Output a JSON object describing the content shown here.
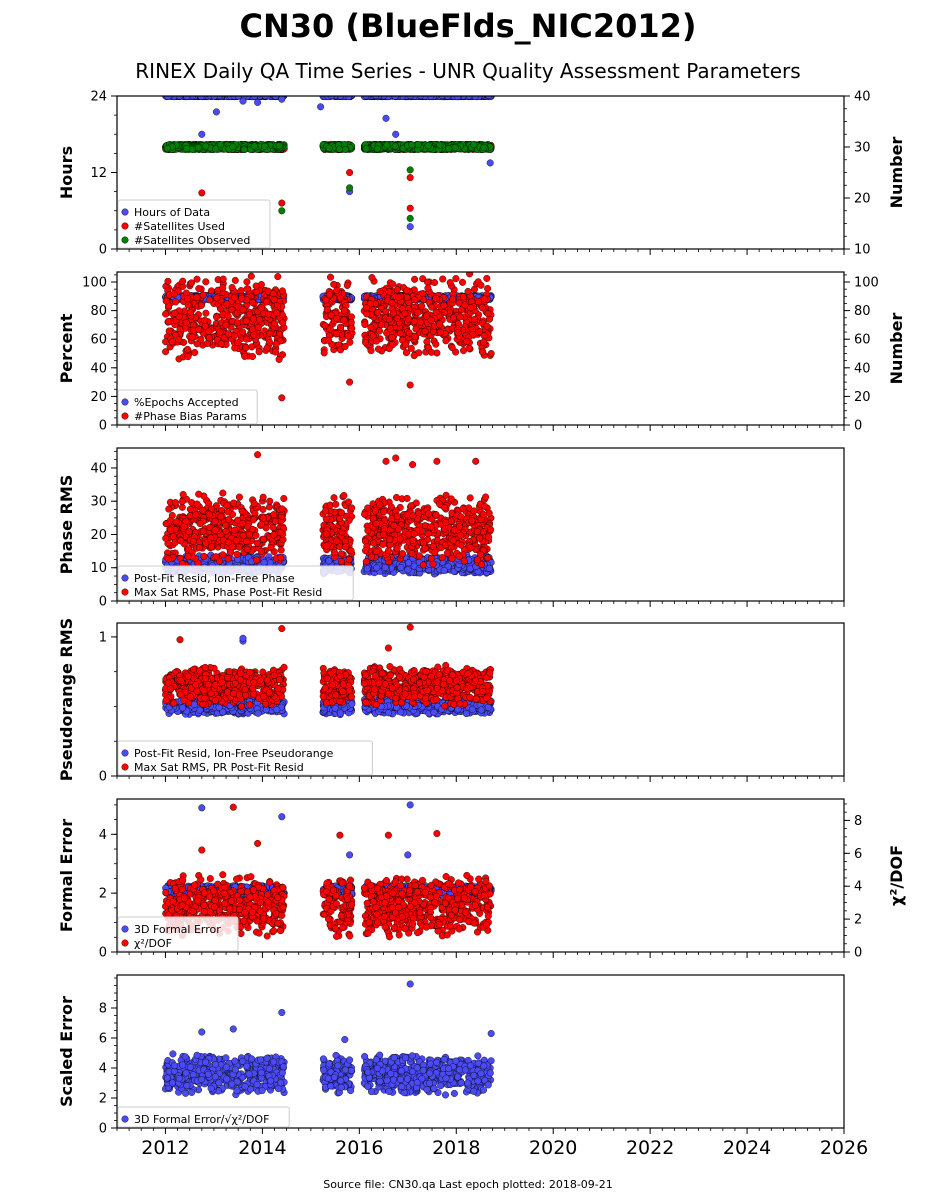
{
  "figure": {
    "title": "CN30 (BlueFlds_NIC2012)",
    "subtitle": "RINEX Daily QA Time Series - UNR Quality Assessment Parameters",
    "footer": "Source file: CN30.qa Last epoch plotted: 2018-09-21"
  },
  "colors": {
    "blue": "#4b4bf5",
    "red": "#ff0000",
    "green": "#008000"
  },
  "chart_data": [
    {
      "type": "scatter",
      "ylabel": "Hours",
      "y2label": "Number",
      "xlim": [
        2011.0,
        2026.0
      ],
      "ylim": [
        0,
        24
      ],
      "y2lim": [
        10,
        40
      ],
      "yticks": [
        0,
        12,
        24
      ],
      "y2ticks": [
        10,
        20,
        30,
        40
      ],
      "xticks": [
        2012,
        2014,
        2016,
        2018,
        2020,
        2022,
        2024,
        2026
      ],
      "data_segments": [
        [
          2012.0,
          2014.45
        ],
        [
          2015.25,
          2015.85
        ],
        [
          2016.1,
          2018.72
        ]
      ],
      "legend": [
        {
          "label": "Hours of Data",
          "color": "blue"
        },
        {
          "label": "#Satellites Used",
          "color": "red"
        },
        {
          "label": "#Satellites Observed",
          "color": "green"
        }
      ],
      "series": [
        {
          "name": "Hours of Data",
          "color": "blue",
          "axis": "left",
          "typical": 24,
          "spread": 0.1,
          "outliers": [
            [
              2012.75,
              18
            ],
            [
              2013.05,
              21.5
            ],
            [
              2013.6,
              23.2
            ],
            [
              2013.9,
              23.0
            ],
            [
              2014.4,
              23.5
            ],
            [
              2015.2,
              22.3
            ],
            [
              2015.8,
              9.0
            ],
            [
              2016.55,
              20.5
            ],
            [
              2016.75,
              18
            ],
            [
              2017.05,
              3.5
            ],
            [
              2018.7,
              13.5
            ]
          ]
        },
        {
          "name": "#Satellites Used",
          "color": "red",
          "axis": "right",
          "typical": 30,
          "spread": 0.5,
          "outliers": [
            [
              2012.75,
              21
            ],
            [
              2014.4,
              19
            ],
            [
              2015.8,
              25
            ],
            [
              2017.05,
              18
            ],
            [
              2017.05,
              24
            ],
            [
              2018.72,
              30
            ]
          ]
        },
        {
          "name": "#Satellites Observed",
          "color": "green",
          "axis": "right",
          "typical": 30,
          "spread": 0.5,
          "outliers": [
            [
              2014.4,
              17.5
            ],
            [
              2015.8,
              22
            ],
            [
              2017.05,
              16
            ],
            [
              2017.05,
              25.5
            ]
          ]
        }
      ]
    },
    {
      "type": "scatter",
      "ylabel": "Percent",
      "y2label": "Number",
      "xlim": [
        2011.0,
        2026.0
      ],
      "ylim": [
        0,
        107
      ],
      "y2lim": [
        0,
        107
      ],
      "yticks": [
        0,
        20,
        40,
        60,
        80,
        100
      ],
      "y2ticks": [
        0,
        20,
        40,
        60,
        80,
        100
      ],
      "xticks": [
        2012,
        2014,
        2016,
        2018,
        2020,
        2022,
        2024,
        2026
      ],
      "data_segments": [
        [
          2012.0,
          2014.45
        ],
        [
          2015.25,
          2015.85
        ],
        [
          2016.1,
          2018.72
        ]
      ],
      "legend": [
        {
          "label": "%Epochs Accepted",
          "color": "blue"
        },
        {
          "label": "#Phase Bias Params",
          "color": "red"
        }
      ],
      "series": [
        {
          "name": "%Epochs Accepted",
          "color": "blue",
          "axis": "left",
          "typical": 89,
          "spread": 1.5,
          "outliers": []
        },
        {
          "name": "#Phase Bias Params",
          "color": "red",
          "axis": "right",
          "min": 45,
          "max": 106,
          "outliers": [
            [
              2014.4,
              19
            ],
            [
              2015.8,
              30
            ],
            [
              2017.05,
              28
            ],
            [
              2018.72,
              50
            ]
          ]
        }
      ]
    },
    {
      "type": "scatter",
      "ylabel": "Phase RMS",
      "xlim": [
        2011.0,
        2026.0
      ],
      "ylim": [
        0,
        46
      ],
      "yticks": [
        0,
        10,
        20,
        30,
        40
      ],
      "xticks": [
        2012,
        2014,
        2016,
        2018,
        2020,
        2022,
        2024,
        2026
      ],
      "data_segments": [
        [
          2012.0,
          2014.45
        ],
        [
          2015.25,
          2015.85
        ],
        [
          2016.1,
          2018.72
        ]
      ],
      "legend": [
        {
          "label": "Post-Fit Resid, Ion-Free Phase",
          "color": "blue"
        },
        {
          "label": "Max Sat RMS, Phase Post-Fit Resid",
          "color": "red"
        }
      ],
      "series": [
        {
          "name": "Post-Fit Resid, Ion-Free Phase",
          "color": "blue",
          "axis": "left",
          "min": 8,
          "max": 14,
          "outliers": []
        },
        {
          "name": "Max Sat RMS, Phase Post-Fit Resid",
          "color": "red",
          "axis": "left",
          "min": 10,
          "max": 33,
          "outliers": [
            [
              2013.9,
              44
            ],
            [
              2016.55,
              42
            ],
            [
              2016.75,
              43
            ],
            [
              2017.1,
              41
            ],
            [
              2017.6,
              42
            ],
            [
              2018.4,
              42
            ]
          ]
        }
      ]
    },
    {
      "type": "scatter",
      "ylabel": "Pseudorange RMS",
      "xlim": [
        2011.0,
        2026.0
      ],
      "ylim": [
        0,
        1.1
      ],
      "yticks": [
        0,
        1
      ],
      "xticks": [
        2012,
        2014,
        2016,
        2018,
        2020,
        2022,
        2024,
        2026
      ],
      "data_segments": [
        [
          2012.0,
          2014.45
        ],
        [
          2015.25,
          2015.85
        ],
        [
          2016.1,
          2018.72
        ]
      ],
      "legend": [
        {
          "label": "Post-Fit Resid, Ion-Free Pseudorange",
          "color": "blue"
        },
        {
          "label": "Max Sat RMS, PR Post-Fit Resid",
          "color": "red"
        }
      ],
      "series": [
        {
          "name": "Post-Fit Resid, Ion-Free Pseudorange",
          "color": "blue",
          "axis": "left",
          "min": 0.44,
          "max": 0.56,
          "outliers": [
            [
              2013.6,
              0.97
            ],
            [
              2013.6,
              0.99
            ]
          ]
        },
        {
          "name": "Max Sat RMS, PR Post-Fit Resid",
          "color": "red",
          "axis": "left",
          "min": 0.5,
          "max": 0.8,
          "outliers": [
            [
              2012.3,
              0.98
            ],
            [
              2014.4,
              1.06
            ],
            [
              2017.05,
              1.07
            ],
            [
              2016.6,
              0.92
            ]
          ]
        }
      ]
    },
    {
      "type": "scatter",
      "ylabel": "Formal Error",
      "y2label": "χ²/DOF",
      "xlim": [
        2011.0,
        2026.0
      ],
      "ylim": [
        0,
        5.2
      ],
      "y2lim": [
        0,
        9.3
      ],
      "yticks": [
        0,
        2,
        4
      ],
      "y2ticks": [
        0,
        2,
        4,
        6,
        8
      ],
      "xticks": [
        2012,
        2014,
        2016,
        2018,
        2020,
        2022,
        2024,
        2026
      ],
      "data_segments": [
        [
          2012.0,
          2014.45
        ],
        [
          2015.25,
          2015.85
        ],
        [
          2016.1,
          2018.72
        ]
      ],
      "legend": [
        {
          "label": "3D Formal Error",
          "color": "blue"
        },
        {
          "label": "χ²/DOF",
          "color": "red"
        }
      ],
      "series": [
        {
          "name": "3D Formal Error",
          "color": "blue",
          "axis": "left",
          "typical": 2.1,
          "spread": 0.15,
          "outliers": [
            [
              2012.75,
              4.9
            ],
            [
              2014.4,
              4.6
            ],
            [
              2017.05,
              5.0
            ],
            [
              2015.8,
              3.3
            ],
            [
              2017.0,
              3.3
            ]
          ]
        },
        {
          "name": "χ²/DOF",
          "color": "red",
          "axis": "right",
          "min": 0.8,
          "max": 4.8,
          "outliers": [
            [
              2013.4,
              8.8
            ],
            [
              2012.75,
              6.2
            ],
            [
              2013.9,
              6.6
            ],
            [
              2015.6,
              7.1
            ],
            [
              2016.6,
              7.1
            ],
            [
              2017.6,
              7.2
            ]
          ]
        }
      ]
    },
    {
      "type": "scatter",
      "ylabel": "Scaled Error",
      "xlim": [
        2011.0,
        2026.0
      ],
      "ylim": [
        0,
        10.2
      ],
      "yticks": [
        0,
        2,
        4,
        6,
        8
      ],
      "xticks": [
        2012,
        2014,
        2016,
        2018,
        2020,
        2022,
        2024,
        2026
      ],
      "data_segments": [
        [
          2012.0,
          2014.45
        ],
        [
          2015.25,
          2015.85
        ],
        [
          2016.1,
          2018.72
        ]
      ],
      "legend": [
        {
          "label": "3D Formal Error/√χ²/DOF",
          "color": "blue"
        }
      ],
      "series": [
        {
          "name": "3D Formal Error/√χ²/DOF",
          "color": "blue",
          "axis": "left",
          "min": 2.2,
          "max": 5.0,
          "outliers": [
            [
              2012.75,
              6.4
            ],
            [
              2013.4,
              6.6
            ],
            [
              2014.4,
              7.7
            ],
            [
              2017.05,
              9.6
            ],
            [
              2018.72,
              6.3
            ],
            [
              2015.7,
              5.9
            ]
          ]
        }
      ]
    }
  ]
}
